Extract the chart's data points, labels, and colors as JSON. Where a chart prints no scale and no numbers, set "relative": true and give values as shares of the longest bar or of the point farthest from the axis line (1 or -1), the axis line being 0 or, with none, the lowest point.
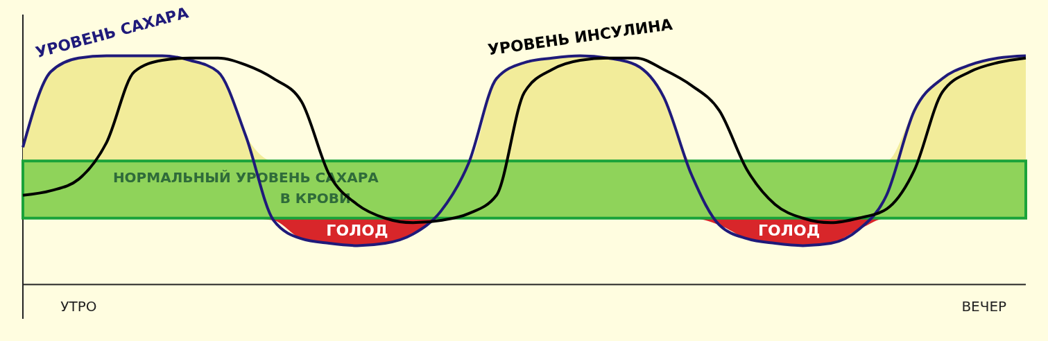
{
  "chart_data": {
    "type": "line",
    "relative": true,
    "grid": false,
    "marker": "none",
    "line_style": "solid",
    "categories": [
      null,
      null,
      null,
      null,
      null,
      null,
      null,
      null,
      null,
      null,
      null,
      null,
      null,
      null,
      null,
      null,
      null,
      null,
      null,
      null,
      null,
      null,
      null,
      null,
      null,
      null,
      null,
      null,
      null,
      null,
      null,
      null,
      null,
      null,
      null,
      null,
      null
    ],
    "series": [
      {
        "name": "УРОВЕНЬ САХАРА",
        "color": "#1f1a7a",
        "values": [
          0.6,
          0.93,
          0.99,
          1.0,
          1.0,
          1.0,
          0.98,
          0.93,
          0.65,
          0.28,
          0.2,
          0.18,
          0.17,
          0.18,
          0.22,
          0.32,
          0.53,
          0.9,
          0.97,
          0.99,
          1.0,
          0.99,
          0.96,
          0.82,
          0.48,
          0.26,
          0.2,
          0.18,
          0.17,
          0.18,
          0.24,
          0.39,
          0.76,
          0.9,
          0.96,
          0.99,
          1.0
        ]
      },
      {
        "name": "УРОВЕНЬ ИНСУЛИНА",
        "color": "#000000",
        "values": [
          0.39,
          0.41,
          0.46,
          0.62,
          0.93,
          0.98,
          0.99,
          0.99,
          0.96,
          0.9,
          0.8,
          0.48,
          0.35,
          0.29,
          0.27,
          0.28,
          0.31,
          0.39,
          0.84,
          0.94,
          0.98,
          0.99,
          0.99,
          0.94,
          0.87,
          0.76,
          0.5,
          0.35,
          0.29,
          0.27,
          0.29,
          0.33,
          0.5,
          0.84,
          0.93,
          0.97,
          0.99
        ]
      }
    ],
    "bands": [
      {
        "axis": "y",
        "from": 0.29,
        "to": 0.54,
        "label": "НОРМАЛЬНЫЙ УРОВЕНЬ САХАРА\nВ КРОВИ",
        "color": "#8fd35a"
      }
    ],
    "annotations": [
      "УТРО",
      "ВЕЧЕР",
      "ГОЛОД",
      "ГОЛОД"
    ]
  }
}
